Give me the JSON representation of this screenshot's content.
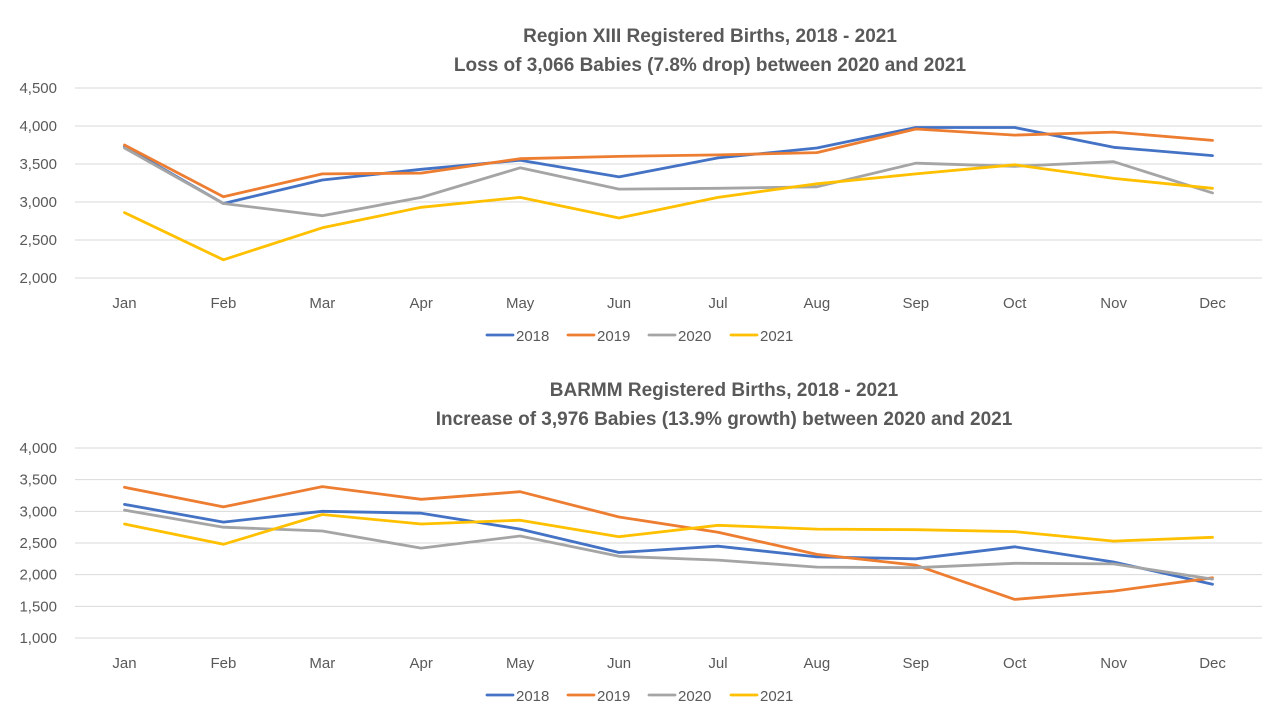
{
  "chart_data": [
    {
      "type": "line",
      "title": "Region XIII Registered Births, 2018 - 2021",
      "subtitle": "Loss of 3,066 Babies (7.8% drop) between 2020 and 2021",
      "categories": [
        "Jan",
        "Feb",
        "Mar",
        "Apr",
        "May",
        "Jun",
        "Jul",
        "Aug",
        "Sep",
        "Oct",
        "Nov",
        "Dec"
      ],
      "ylim": [
        2000,
        4500
      ],
      "yticks": [
        "2,000",
        "2,500",
        "3,000",
        "3,500",
        "4,000",
        "4,500"
      ],
      "ytick_values": [
        2000,
        2500,
        3000,
        3500,
        4000,
        4500
      ],
      "grid": true,
      "legend_position": "bottom",
      "series": [
        {
          "name": "2018",
          "color": "#4472C4",
          "values": [
            3730,
            2980,
            3290,
            3430,
            3550,
            3330,
            3580,
            3710,
            3980,
            3980,
            3720,
            3610
          ]
        },
        {
          "name": "2019",
          "color": "#ED7D31",
          "values": [
            3750,
            3070,
            3370,
            3380,
            3570,
            3600,
            3620,
            3650,
            3960,
            3880,
            3920,
            3810
          ]
        },
        {
          "name": "2020",
          "color": "#A5A5A5",
          "values": [
            3710,
            2980,
            2820,
            3060,
            3450,
            3170,
            3180,
            3200,
            3510,
            3470,
            3530,
            3120
          ]
        },
        {
          "name": "2021",
          "color": "#FFC000",
          "values": [
            2860,
            2240,
            2660,
            2930,
            3060,
            2790,
            3060,
            3240,
            3370,
            3490,
            3310,
            3180
          ]
        }
      ]
    },
    {
      "type": "line",
      "title": "BARMM Registered Births, 2018 - 2021",
      "subtitle": "Increase of 3,976 Babies (13.9% growth) between 2020 and 2021",
      "categories": [
        "Jan",
        "Feb",
        "Mar",
        "Apr",
        "May",
        "Jun",
        "Jul",
        "Aug",
        "Sep",
        "Oct",
        "Nov",
        "Dec"
      ],
      "ylim": [
        1000,
        4000
      ],
      "yticks": [
        "1,000",
        "1,500",
        "2,000",
        "2,500",
        "3,000",
        "3,500",
        "4,000"
      ],
      "ytick_values": [
        1000,
        1500,
        2000,
        2500,
        3000,
        3500,
        4000
      ],
      "grid": true,
      "legend_position": "bottom",
      "series": [
        {
          "name": "2018",
          "color": "#4472C4",
          "values": [
            3110,
            2830,
            3000,
            2970,
            2720,
            2350,
            2450,
            2280,
            2250,
            2440,
            2200,
            1850
          ]
        },
        {
          "name": "2019",
          "color": "#ED7D31",
          "values": [
            3380,
            3070,
            3390,
            3190,
            3310,
            2910,
            2670,
            2320,
            2150,
            1610,
            1740,
            1950
          ]
        },
        {
          "name": "2020",
          "color": "#A5A5A5",
          "values": [
            3020,
            2750,
            2690,
            2420,
            2610,
            2290,
            2230,
            2120,
            2110,
            2180,
            2170,
            1930
          ]
        },
        {
          "name": "2021",
          "color": "#FFC000",
          "values": [
            2800,
            2480,
            2950,
            2800,
            2860,
            2600,
            2780,
            2720,
            2710,
            2680,
            2530,
            2590
          ]
        }
      ]
    }
  ]
}
